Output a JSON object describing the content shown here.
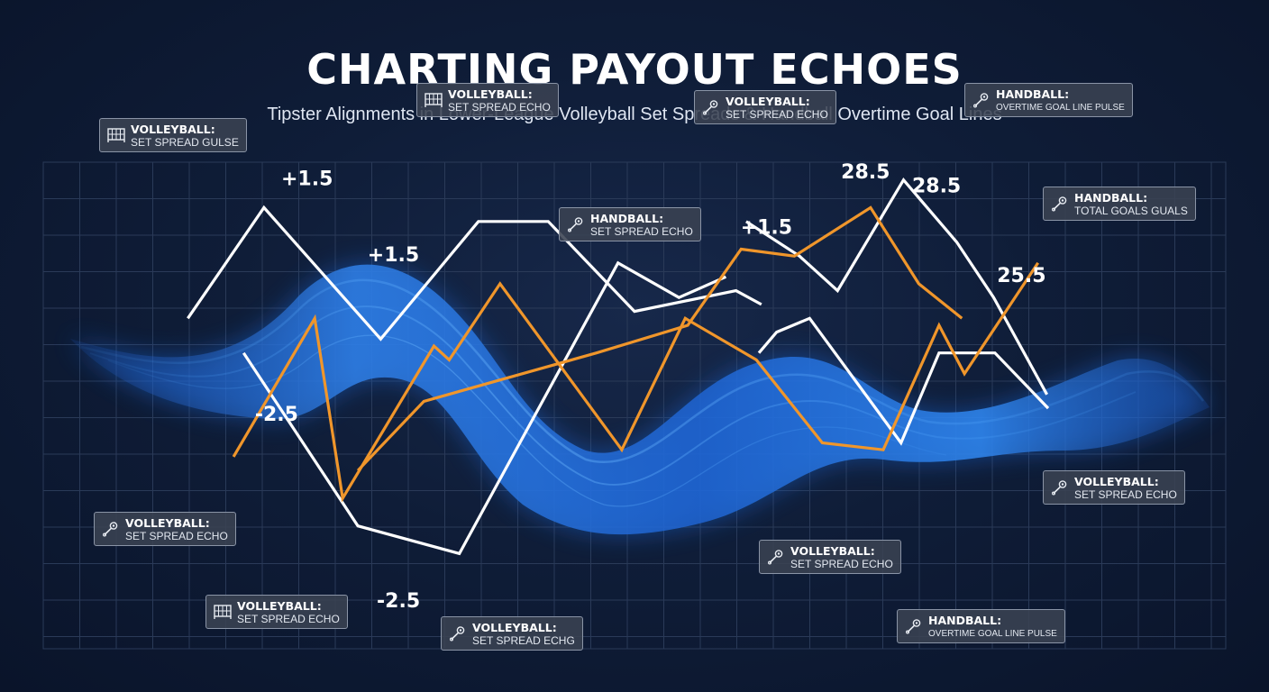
{
  "header": {
    "title": "CHARTING PAYOUT ECHOES",
    "subtitle": "Tipster Alignments in Lower-League Volleyball Set Spreads & Handball Overtime Goal Lines"
  },
  "colors": {
    "background": "#0f1d38",
    "white_series": "#ffffff",
    "orange_series": "#f0962b",
    "wave": "#2f7fe6",
    "grid": "#2a3a58"
  },
  "chart_data": {
    "type": "line",
    "title": "CHARTING PAYOUT ECHOES",
    "subtitle": "Tipster Alignments in Lower-League Volleyball Set Spreads & Handball Overtime Goal Lines",
    "xlabel": "",
    "ylabel": "",
    "grid": true,
    "legend": "none",
    "series": [
      {
        "color": "#ffffff",
        "points": [
          [
            0.148,
            0.46
          ],
          [
            0.208,
            0.3
          ],
          [
            0.3,
            0.49
          ],
          [
            0.377,
            0.32
          ],
          [
            0.432,
            0.32
          ],
          [
            0.5,
            0.45
          ],
          [
            0.58,
            0.42
          ],
          [
            0.6,
            0.44
          ]
        ]
      },
      {
        "color": "#ffffff",
        "points": [
          [
            0.192,
            0.51
          ],
          [
            0.282,
            0.76
          ],
          [
            0.362,
            0.8
          ],
          [
            0.487,
            0.38
          ],
          [
            0.535,
            0.43
          ],
          [
            0.572,
            0.4
          ]
        ]
      },
      {
        "color": "#ffffff",
        "points": [
          [
            0.598,
            0.51
          ],
          [
            0.612,
            0.48
          ],
          [
            0.638,
            0.46
          ],
          [
            0.71,
            0.64
          ],
          [
            0.74,
            0.51
          ],
          [
            0.784,
            0.51
          ],
          [
            0.826,
            0.59
          ]
        ]
      },
      {
        "color": "#ffffff",
        "points": [
          [
            0.588,
            0.32
          ],
          [
            0.63,
            0.37
          ],
          [
            0.66,
            0.42
          ],
          [
            0.712,
            0.26
          ],
          [
            0.754,
            0.35
          ],
          [
            0.783,
            0.43
          ],
          [
            0.825,
            0.57
          ]
        ]
      },
      {
        "color": "#f0962b",
        "points": [
          [
            0.184,
            0.66
          ],
          [
            0.248,
            0.46
          ],
          [
            0.27,
            0.72
          ],
          [
            0.342,
            0.5
          ],
          [
            0.354,
            0.52
          ],
          [
            0.394,
            0.41
          ],
          [
            0.49,
            0.65
          ],
          [
            0.54,
            0.46
          ],
          [
            0.596,
            0.52
          ],
          [
            0.648,
            0.64
          ],
          [
            0.696,
            0.65
          ],
          [
            0.74,
            0.47
          ],
          [
            0.76,
            0.54
          ],
          [
            0.818,
            0.38
          ]
        ]
      },
      {
        "color": "#f0962b",
        "points": [
          [
            0.282,
            0.68
          ],
          [
            0.334,
            0.58
          ],
          [
            0.47,
            0.51
          ],
          [
            0.542,
            0.47
          ],
          [
            0.584,
            0.36
          ],
          [
            0.626,
            0.37
          ],
          [
            0.686,
            0.3
          ],
          [
            0.724,
            0.41
          ],
          [
            0.758,
            0.46
          ]
        ]
      }
    ],
    "value_labels": [
      {
        "text": "+1.5",
        "x": 0.242,
        "y": 0.26
      },
      {
        "text": "+1.5",
        "x": 0.31,
        "y": 0.37
      },
      {
        "text": "+1.5",
        "x": 0.604,
        "y": 0.33
      },
      {
        "text": "-2.5",
        "x": 0.218,
        "y": 0.6
      },
      {
        "text": "-2.5",
        "x": 0.314,
        "y": 0.87
      },
      {
        "text": "28.5",
        "x": 0.682,
        "y": 0.25
      },
      {
        "text": "28.5",
        "x": 0.738,
        "y": 0.27
      },
      {
        "text": "25.5",
        "x": 0.805,
        "y": 0.4
      }
    ],
    "annotations": [
      {
        "sport": "VOLLEYBALL:",
        "text": "SET SPREAD GULSE",
        "icon": "volleyball-net-icon",
        "x": 0.078,
        "y": 0.17
      },
      {
        "sport": "VOLLEYBALL:",
        "text": "SET SPREAD ECHO",
        "icon": "volleyball-net-icon",
        "x": 0.328,
        "y": 0.12
      },
      {
        "sport": "HANDBALL:",
        "text": "SET SPREAD ECHO",
        "icon": "whistle-icon",
        "x": 0.44,
        "y": 0.3
      },
      {
        "sport": "VOLLEYBALL:",
        "text": "SET SPREAD ECHO",
        "icon": "whistle-icon",
        "x": 0.547,
        "y": 0.13
      },
      {
        "sport": "HANDBALL:",
        "text": "OVERTIME GOAL LINE PULSE",
        "icon": "whistle-icon",
        "x": 0.76,
        "y": 0.12
      },
      {
        "sport": "HANDBALL:",
        "text": "TOTAL GOALS GUALS",
        "icon": "whistle-icon",
        "x": 0.822,
        "y": 0.27
      },
      {
        "sport": "VOLLEYBALL:",
        "text": "SET SPREAD ECHO",
        "icon": "whistle-icon",
        "x": 0.074,
        "y": 0.74
      },
      {
        "sport": "VOLLEYBALL:",
        "text": "SET SPREAD ECHO",
        "icon": "volleyball-net-icon",
        "x": 0.162,
        "y": 0.86
      },
      {
        "sport": "VOLLEYBALL:",
        "text": "SET SPREAD ECHG",
        "icon": "whistle-icon",
        "x": 0.347,
        "y": 0.89
      },
      {
        "sport": "VOLLEYBALL:",
        "text": "SET SPREAD ECHO",
        "icon": "whistle-icon",
        "x": 0.598,
        "y": 0.78
      },
      {
        "sport": "VOLLEYBALL:",
        "text": "SET SPREAD ECHO",
        "icon": "whistle-icon",
        "x": 0.822,
        "y": 0.68
      },
      {
        "sport": "HANDBALL:",
        "text": "OVERTIME GOAL LINE PULSE",
        "icon": "whistle-icon",
        "x": 0.707,
        "y": 0.88
      }
    ]
  }
}
